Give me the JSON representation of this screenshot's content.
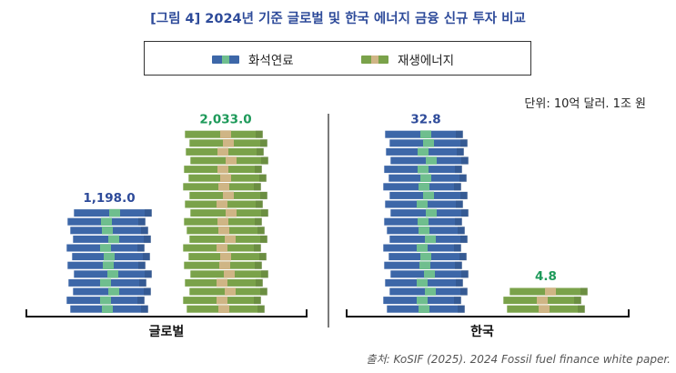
{
  "title": "[그림 4] 2024년 기준 글로벌 및 한국 에너지 금융 신규 투자 비교",
  "unit": "단위: 10억 달러. 1조 원",
  "source": "출처: KoSIF (2025). 2024 Fossil fuel finance white paper.",
  "colors": {
    "fossil": "#3d67a8",
    "fossil_mid": "#6fbe8e",
    "renewable": "#7aa24a",
    "renewable_mid": "#cfb585",
    "label_fossil": "#2e4b9a",
    "label_renewable": "#1e9a5a"
  },
  "chart_data": [
    {
      "type": "bar",
      "xlabel": "글로벌",
      "series": [
        {
          "name": "화석연료",
          "value": 1198.0,
          "label": "1,198.0"
        },
        {
          "name": "재생에너지",
          "value": 2033.0,
          "label": "2,033.0"
        }
      ]
    },
    {
      "type": "bar",
      "xlabel": "한국",
      "series": [
        {
          "name": "화석연료",
          "value": 32.8,
          "label": "32.8"
        },
        {
          "name": "재생에너지",
          "value": 4.8,
          "label": "4.8"
        }
      ]
    }
  ],
  "legend": [
    "화석연료",
    "재생에너지"
  ]
}
